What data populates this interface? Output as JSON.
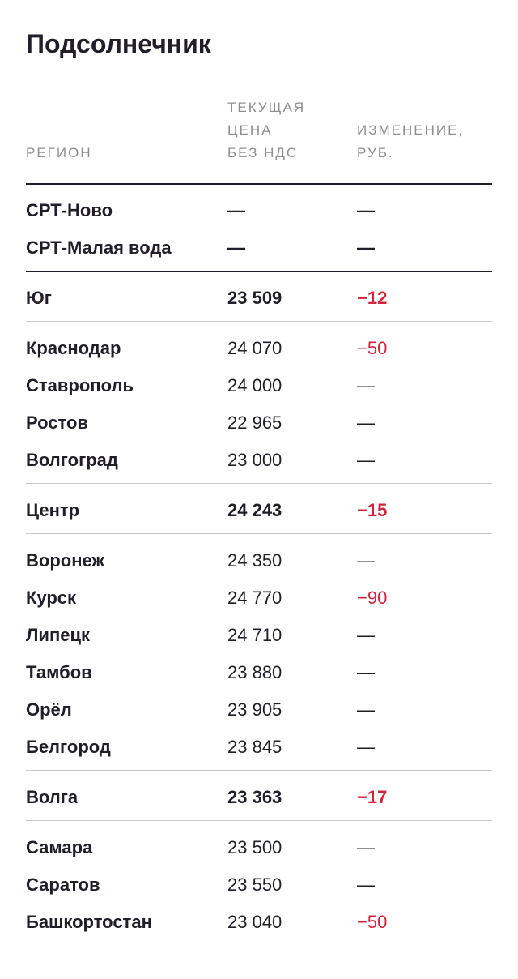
{
  "title": "Подсолнечник",
  "headers": {
    "region": "РЕГИОН",
    "price": "ТЕКУЩАЯ\nЦЕНА\nБЕЗ НДС",
    "change": "ИЗМЕНЕНИЕ,\nРУБ."
  },
  "colors": {
    "text": "#221e29",
    "muted": "#8f8d94",
    "negative": "#d3243b",
    "divider": "#c9c8cc"
  },
  "rows": [
    {
      "region": "СРТ-Ново",
      "price": "—",
      "change": "—"
    },
    {
      "region": "СРТ-Малая вода",
      "price": "—",
      "change": "—"
    },
    {
      "region": "Юг",
      "price": "23 509",
      "change": "−12"
    },
    {
      "region": "Краснодар",
      "price": "24 070",
      "change": "−50"
    },
    {
      "region": "Ставрополь",
      "price": "24 000",
      "change": "—"
    },
    {
      "region": "Ростов",
      "price": "22 965",
      "change": "—"
    },
    {
      "region": "Волгоград",
      "price": "23 000",
      "change": "—"
    },
    {
      "region": "Центр",
      "price": "24 243",
      "change": "−15"
    },
    {
      "region": "Воронеж",
      "price": "24 350",
      "change": "—"
    },
    {
      "region": "Курск",
      "price": "24 770",
      "change": "−90"
    },
    {
      "region": "Липецк",
      "price": "24 710",
      "change": "—"
    },
    {
      "region": "Тамбов",
      "price": "23 880",
      "change": "—"
    },
    {
      "region": "Орёл",
      "price": "23 905",
      "change": "—"
    },
    {
      "region": "Белгород",
      "price": "23 845",
      "change": "—"
    },
    {
      "region": "Волга",
      "price": "23 363",
      "change": "−17"
    },
    {
      "region": "Самара",
      "price": "23 500",
      "change": "—"
    },
    {
      "region": "Саратов",
      "price": "23 550",
      "change": "—"
    },
    {
      "region": "Башкортостан",
      "price": "23 040",
      "change": "−50"
    }
  ]
}
